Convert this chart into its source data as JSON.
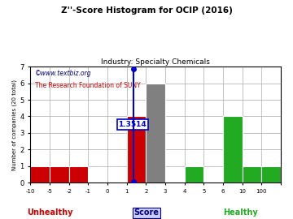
{
  "title": "Z''-Score Histogram for OCIP (2016)",
  "subtitle": "Industry: Specialty Chemicals",
  "watermark1": "©www.textbiz.org",
  "watermark2": "The Research Foundation of SUNY",
  "xlabel_main": "Score",
  "xlabel_unhealthy": "Unhealthy",
  "xlabel_healthy": "Healthy",
  "ylabel": "Number of companies (20 total)",
  "score_value": 1.3514,
  "score_label": "1.3514",
  "bin_labels": [
    "-10",
    "-5",
    "-2",
    "-1",
    "0",
    "1",
    "2",
    "3",
    "4",
    "5",
    "6",
    "10",
    "100"
  ],
  "bar_heights": [
    1,
    1,
    1,
    0,
    0,
    4,
    6,
    0,
    1,
    0,
    4,
    1,
    1
  ],
  "bar_colors": [
    "#cc0000",
    "#cc0000",
    "#cc0000",
    "#cc0000",
    "#cc0000",
    "#cc0000",
    "#808080",
    "#808080",
    "#22aa22",
    "#22aa22",
    "#22aa22",
    "#22aa22",
    "#22aa22"
  ],
  "ylim": [
    0,
    7
  ],
  "yticks": [
    0,
    1,
    2,
    3,
    4,
    5,
    6,
    7
  ],
  "bg_color": "#ffffff",
  "grid_color": "#aaaaaa",
  "line_color": "#0000cc",
  "title_color": "#000000",
  "unhealthy_color": "#cc0000",
  "healthy_color": "#22aa22",
  "score_bin_index": 5.3514
}
